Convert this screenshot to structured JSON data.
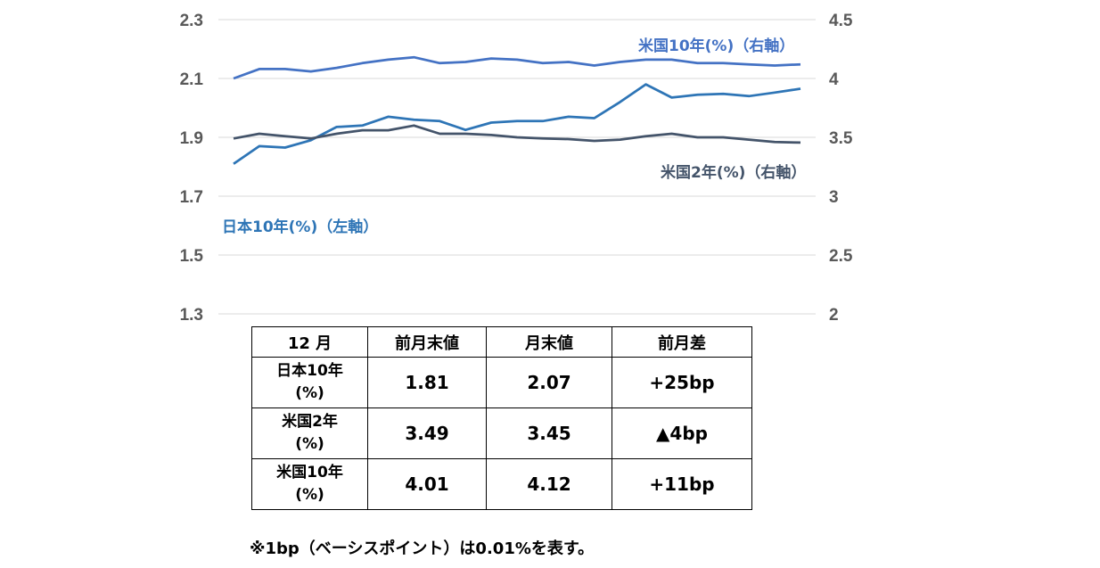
{
  "chart_data": {
    "type": "line",
    "left_axis": {
      "ylim": [
        1.3,
        2.3
      ],
      "ticks": [
        "2.3",
        "2.1",
        "1.9",
        "1.7",
        "1.5",
        "1.3"
      ]
    },
    "right_axis": {
      "ylim": [
        2,
        4.5
      ],
      "ticks": [
        "4.5",
        "4",
        "3.5",
        "3",
        "2.5",
        "2"
      ]
    },
    "grid": true,
    "series": [
      {
        "name": "米国10年(%)（右軸）",
        "axis": "right",
        "color": "#4472C4",
        "values": [
          4.0,
          4.08,
          4.08,
          4.06,
          4.09,
          4.13,
          4.16,
          4.18,
          4.13,
          4.14,
          4.17,
          4.16,
          4.13,
          4.14,
          4.11,
          4.14,
          4.16,
          4.16,
          4.13,
          4.13,
          4.12,
          4.11,
          4.12
        ]
      },
      {
        "name": "日本10年(%)（左軸）",
        "axis": "left",
        "color": "#2E75B6",
        "values": [
          1.81,
          1.87,
          1.865,
          1.89,
          1.935,
          1.94,
          1.97,
          1.96,
          1.955,
          1.925,
          1.95,
          1.955,
          1.955,
          1.97,
          1.965,
          2.02,
          2.08,
          2.035,
          2.045,
          2.048,
          2.04,
          2.052,
          2.065
        ]
      },
      {
        "name": "米国2年(%)（右軸）",
        "axis": "right",
        "color": "#44546A",
        "values": [
          3.49,
          3.53,
          3.51,
          3.49,
          3.53,
          3.56,
          3.56,
          3.6,
          3.53,
          3.53,
          3.52,
          3.5,
          3.49,
          3.485,
          3.47,
          3.48,
          3.51,
          3.53,
          3.5,
          3.5,
          3.48,
          3.46,
          3.455
        ]
      }
    ]
  },
  "table": {
    "headers": [
      "12 月",
      "前月末値",
      "月末値",
      "前月差"
    ],
    "rows": [
      {
        "label_line1": "日本10年",
        "label_line2": "(%)",
        "prev": "1.81",
        "end": "2.07",
        "diff": "+25bp"
      },
      {
        "label_line1": "米国2年",
        "label_line2": "(%)",
        "prev": "3.49",
        "end": "3.45",
        "diff": "▲4bp"
      },
      {
        "label_line1": "米国10年",
        "label_line2": "(%)",
        "prev": "4.01",
        "end": "4.12",
        "diff": "+11bp"
      }
    ]
  },
  "footnote": "※1bp（ベーシスポイント）は0.01%を表す。"
}
